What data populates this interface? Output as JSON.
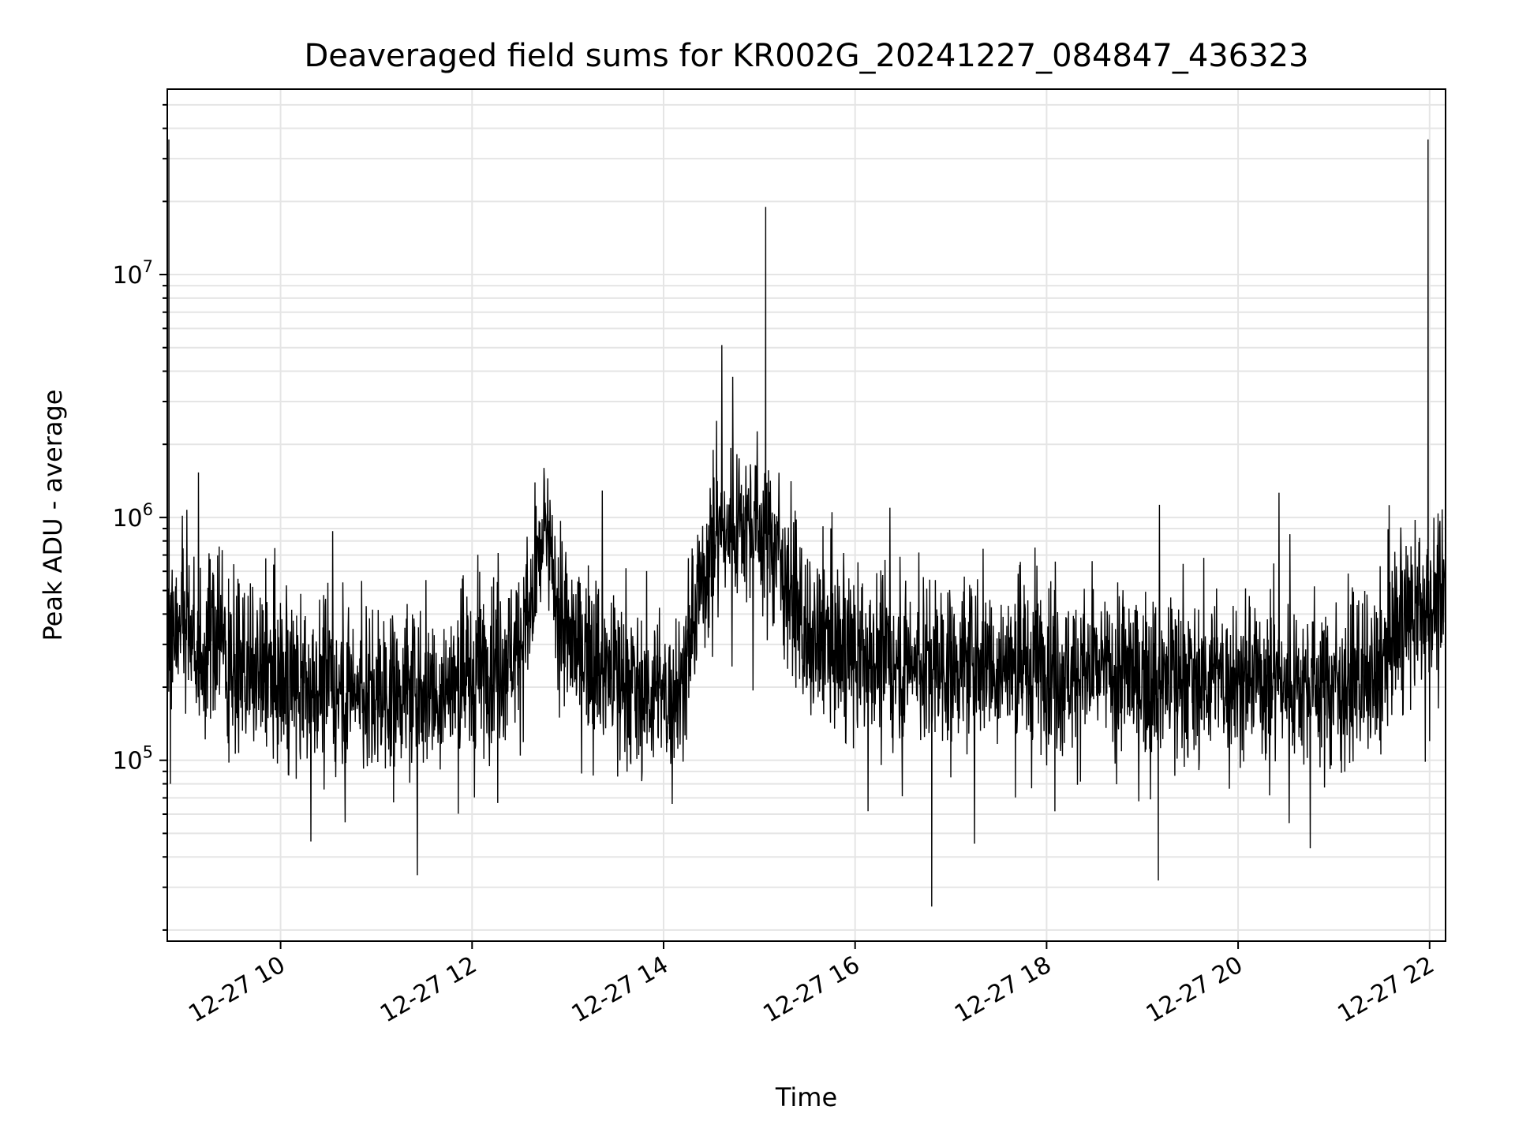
{
  "chart_data": {
    "type": "line",
    "title": "Deaveraged field sums for KR002G_20241227_084847_436323",
    "xlabel": "Time",
    "ylabel": "Peak ADU - average",
    "yscale": "log",
    "xlim": [
      "2024-12-27T08:49",
      "2024-12-27T22:10"
    ],
    "ylim": [
      18000,
      58000000
    ],
    "grid": true,
    "line_color": "#000000",
    "grid_color": "#e5e5e5",
    "x_ticks": [
      {
        "value": "2024-12-27T10:00",
        "label": "12-27 10"
      },
      {
        "value": "2024-12-27T12:00",
        "label": "12-27 12"
      },
      {
        "value": "2024-12-27T14:00",
        "label": "12-27 14"
      },
      {
        "value": "2024-12-27T16:00",
        "label": "12-27 16"
      },
      {
        "value": "2024-12-27T18:00",
        "label": "12-27 18"
      },
      {
        "value": "2024-12-27T20:00",
        "label": "12-27 20"
      },
      {
        "value": "2024-12-27T22:00",
        "label": "12-27 22"
      }
    ],
    "y_ticks": [
      {
        "value": 100000,
        "base": "10",
        "exp": "5"
      },
      {
        "value": 1000000,
        "base": "10",
        "exp": "6"
      },
      {
        "value": 10000000,
        "base": "10",
        "exp": "7"
      }
    ],
    "series": [
      {
        "points": [
          [
            "2024-12-27T08:49",
            300000
          ],
          [
            "2024-12-27T08:50",
            36000000
          ],
          [
            "2024-12-27T08:51",
            80000
          ],
          [
            "2024-12-27T09:00",
            400000
          ],
          [
            "2024-12-27T09:10",
            260000
          ],
          [
            "2024-12-27T09:20",
            350000
          ],
          [
            "2024-12-27T09:30",
            230000
          ],
          [
            "2024-12-27T09:45",
            220000
          ],
          [
            "2024-12-27T10:00",
            210000
          ],
          [
            "2024-12-27T10:15",
            190000
          ],
          [
            "2024-12-27T10:30",
            210000
          ],
          [
            "2024-12-27T10:45",
            200000
          ],
          [
            "2024-12-27T11:00",
            190000
          ],
          [
            "2024-12-27T11:15",
            200000
          ],
          [
            "2024-12-27T11:30",
            190000
          ],
          [
            "2024-12-27T11:45",
            200000
          ],
          [
            "2024-12-27T12:00",
            220000
          ],
          [
            "2024-12-27T12:15",
            260000
          ],
          [
            "2024-12-27T12:30",
            300000
          ],
          [
            "2024-12-27T12:40",
            500000
          ],
          [
            "2024-12-27T12:45",
            900000
          ],
          [
            "2024-12-27T12:50",
            600000
          ],
          [
            "2024-12-27T13:00",
            300000
          ],
          [
            "2024-12-27T13:15",
            280000
          ],
          [
            "2024-12-27T13:30",
            220000
          ],
          [
            "2024-12-27T13:45",
            200000
          ],
          [
            "2024-12-27T14:00",
            180000
          ],
          [
            "2024-12-27T14:10",
            200000
          ],
          [
            "2024-12-27T14:20",
            400000
          ],
          [
            "2024-12-27T14:30",
            800000
          ],
          [
            "2024-12-27T14:40",
            900000
          ],
          [
            "2024-12-27T14:50",
            1000000
          ],
          [
            "2024-12-27T15:00",
            900000
          ],
          [
            "2024-12-27T15:04",
            19000000
          ],
          [
            "2024-12-27T15:10",
            800000
          ],
          [
            "2024-12-27T15:20",
            500000
          ],
          [
            "2024-12-27T15:30",
            280000
          ],
          [
            "2024-12-27T15:45",
            300000
          ],
          [
            "2024-12-27T16:00",
            260000
          ],
          [
            "2024-12-27T16:15",
            260000
          ],
          [
            "2024-12-27T16:30",
            260000
          ],
          [
            "2024-12-27T16:48",
            25000
          ],
          [
            "2024-12-27T17:00",
            250000
          ],
          [
            "2024-12-27T17:15",
            260000
          ],
          [
            "2024-12-27T17:30",
            250000
          ],
          [
            "2024-12-27T17:45",
            240000
          ],
          [
            "2024-12-27T18:00",
            250000
          ],
          [
            "2024-12-27T18:15",
            230000
          ],
          [
            "2024-12-27T18:30",
            230000
          ],
          [
            "2024-12-27T18:45",
            230000
          ],
          [
            "2024-12-27T19:00",
            220000
          ],
          [
            "2024-12-27T19:10",
            32000
          ],
          [
            "2024-12-27T19:20",
            220000
          ],
          [
            "2024-12-27T19:30",
            220000
          ],
          [
            "2024-12-27T19:45",
            220000
          ],
          [
            "2024-12-27T20:00",
            220000
          ],
          [
            "2024-12-27T20:15",
            220000
          ],
          [
            "2024-12-27T20:30",
            210000
          ],
          [
            "2024-12-27T20:45",
            210000
          ],
          [
            "2024-12-27T21:00",
            210000
          ],
          [
            "2024-12-27T21:15",
            210000
          ],
          [
            "2024-12-27T21:30",
            200000
          ],
          [
            "2024-12-27T21:35",
            330000
          ],
          [
            "2024-12-27T21:45",
            400000
          ],
          [
            "2024-12-27T21:59",
            36000000
          ],
          [
            "2024-12-27T22:00",
            120000
          ],
          [
            "2024-12-27T22:05",
            450000
          ],
          [
            "2024-12-27T22:10",
            400000
          ]
        ]
      }
    ]
  }
}
